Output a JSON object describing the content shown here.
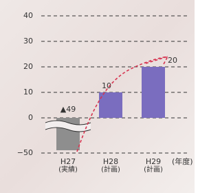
{
  "chart_data": {
    "type": "bar",
    "categories": [
      "H27",
      "H28",
      "H29"
    ],
    "category_notes": [
      "(実績)",
      "(計画)",
      "(計画)"
    ],
    "x_unit": "(年度)",
    "values": [
      -49,
      10,
      20
    ],
    "value_labels": [
      "▲49",
      "10",
      "20"
    ],
    "colors": [
      "#8e8e8e",
      "#7a6dbf",
      "#7a6dbf"
    ],
    "ylim": [
      -50,
      40
    ],
    "yticks": [
      {
        "value": -50,
        "label": "−50"
      },
      0,
      10,
      20,
      30,
      40
    ],
    "grid": true
  }
}
